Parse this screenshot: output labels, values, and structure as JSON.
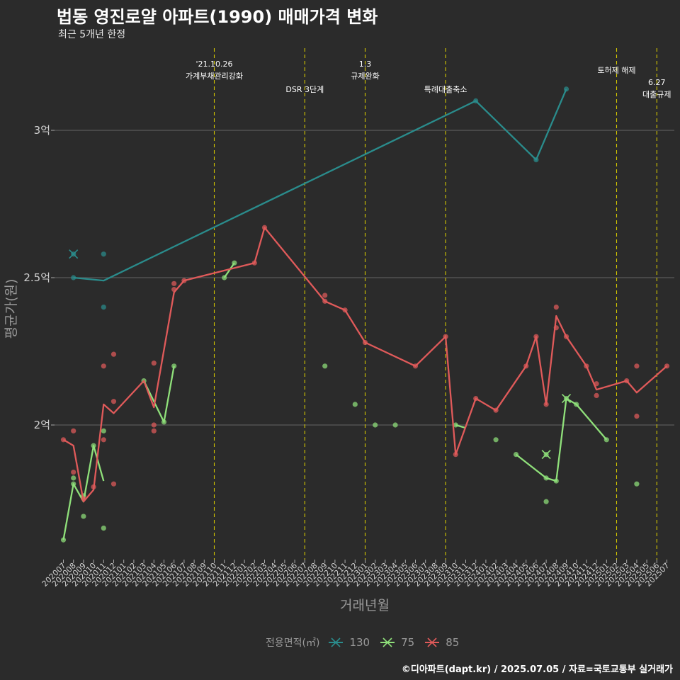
{
  "header": {
    "title": "법동 영진로얄 아파트(1990) 매매가격 변화",
    "subtitle": "최근 5개년 한정"
  },
  "caption": "©디아파트(dapt.kr) / 2025.07.05 / 자료=국토교통부 실거래가",
  "legend": {
    "title": "전용면적(㎡)",
    "items": [
      {
        "label": "130",
        "color": "#2a8c8c"
      },
      {
        "label": "75",
        "color": "#8fe07a"
      },
      {
        "label": "85",
        "color": "#e05a5a"
      }
    ]
  },
  "chart_data": {
    "type": "line",
    "xlabel": "거래년월",
    "ylabel": "평균가(원)",
    "ylim": [
      1.55,
      3.25
    ],
    "yticks": [
      {
        "value": 2.0,
        "label": "2억"
      },
      {
        "value": 2.5,
        "label": "2.5억"
      },
      {
        "value": 3.0,
        "label": "3억"
      }
    ],
    "grid": true,
    "legend_position": "bottom",
    "x_categories": [
      "202007",
      "202008",
      "202009",
      "202010",
      "202011",
      "202012",
      "202101",
      "202102",
      "202103",
      "202104",
      "202105",
      "202106",
      "202107",
      "202108",
      "202109",
      "202110",
      "202111",
      "202112",
      "202201",
      "202202",
      "202203",
      "202204",
      "202205",
      "202206",
      "202207",
      "202208",
      "202209",
      "202210",
      "202211",
      "202212",
      "202301",
      "202302",
      "202303",
      "202304",
      "202305",
      "202306",
      "202307",
      "202308",
      "202309",
      "202310",
      "202311",
      "202312",
      "202401",
      "202402",
      "202403",
      "202404",
      "202405",
      "202406",
      "202407",
      "202408",
      "202409",
      "202410",
      "202411",
      "202412",
      "202501",
      "202502",
      "202503",
      "202504",
      "202505",
      "202506",
      "202507"
    ],
    "annotations": [
      {
        "x": "202110",
        "lines": [
          "'21.10.26",
          "가계부채관리강화"
        ]
      },
      {
        "x": "202207",
        "lines": [
          "DSR 3단계"
        ]
      },
      {
        "x": "202301",
        "lines": [
          "1.3",
          "규제완화"
        ]
      },
      {
        "x": "202309",
        "lines": [
          "특례대출축소"
        ]
      },
      {
        "x": "202502",
        "lines": [
          "토허제 해제"
        ]
      },
      {
        "x": "202506",
        "lines": [
          "6.27",
          "대출규제"
        ]
      }
    ],
    "series": [
      {
        "name": "130",
        "color": "#2a8c8c",
        "line": [
          [
            "202008",
            2.5
          ],
          [
            "202011",
            2.49
          ],
          [
            "202312",
            3.1
          ],
          [
            "202406",
            2.9
          ],
          [
            "202409",
            3.14
          ]
        ],
        "points": [
          [
            "202008",
            2.5
          ],
          [
            "202008",
            2.58
          ],
          [
            "202011",
            2.58
          ],
          [
            "202011",
            2.4
          ],
          [
            "202312",
            3.1
          ],
          [
            "202406",
            2.9
          ],
          [
            "202409",
            3.14
          ]
        ],
        "crosses": [
          [
            "202008",
            2.58
          ]
        ]
      },
      {
        "name": "75",
        "color": "#8fe07a",
        "line": [
          [
            "202007",
            1.61
          ],
          [
            "202008",
            1.8
          ],
          [
            "202009",
            1.74
          ],
          [
            "202010",
            1.93
          ],
          [
            "202011",
            1.81
          ]
        ],
        "line2": [
          [
            "202103",
            2.15
          ],
          [
            "202105",
            2.01
          ],
          [
            "202106",
            2.2
          ]
        ],
        "line3": [
          [
            "202111",
            2.5
          ],
          [
            "202112",
            2.55
          ]
        ],
        "line4": [
          [
            "202310",
            2.0
          ],
          [
            "202311",
            1.99
          ]
        ],
        "line5": [
          [
            "202404",
            1.9
          ],
          [
            "202407",
            1.82
          ],
          [
            "202408",
            1.81
          ],
          [
            "202409",
            2.09
          ],
          [
            "202410",
            2.07
          ],
          [
            "202501",
            1.95
          ]
        ],
        "points": [
          [
            "202007",
            1.61
          ],
          [
            "202008",
            1.8
          ],
          [
            "202008",
            1.82
          ],
          [
            "202009",
            1.69
          ],
          [
            "202009",
            1.76
          ],
          [
            "202010",
            1.93
          ],
          [
            "202011",
            1.98
          ],
          [
            "202011",
            1.65
          ],
          [
            "202103",
            2.15
          ],
          [
            "202105",
            2.01
          ],
          [
            "202106",
            2.2
          ],
          [
            "202111",
            2.5
          ],
          [
            "202112",
            2.55
          ],
          [
            "202209",
            2.2
          ],
          [
            "202212",
            2.07
          ],
          [
            "202302",
            2.0
          ],
          [
            "202304",
            2.0
          ],
          [
            "202310",
            2.0
          ],
          [
            "202402",
            1.95
          ],
          [
            "202404",
            1.9
          ],
          [
            "202407",
            1.9
          ],
          [
            "202407",
            1.82
          ],
          [
            "202407",
            1.74
          ],
          [
            "202408",
            1.81
          ],
          [
            "202409",
            2.09
          ],
          [
            "202410",
            2.07
          ],
          [
            "202501",
            1.95
          ],
          [
            "202504",
            1.8
          ]
        ],
        "crosses": [
          [
            "202407",
            1.9
          ],
          [
            "202409",
            2.09
          ]
        ]
      },
      {
        "name": "85",
        "color": "#e05a5a",
        "line": [
          [
            "202007",
            1.95
          ],
          [
            "202008",
            1.93
          ],
          [
            "202009",
            1.74
          ],
          [
            "202010",
            1.78
          ],
          [
            "202011",
            2.07
          ],
          [
            "202012",
            2.04
          ],
          [
            "202103",
            2.15
          ],
          [
            "202104",
            2.06
          ],
          [
            "202106",
            2.45
          ],
          [
            "202107",
            2.49
          ],
          [
            "202202",
            2.55
          ],
          [
            "202203",
            2.67
          ],
          [
            "202209",
            2.42
          ],
          [
            "202211",
            2.39
          ],
          [
            "202301",
            2.28
          ],
          [
            "202306",
            2.2
          ],
          [
            "202309",
            2.3
          ],
          [
            "202310",
            1.9
          ],
          [
            "202312",
            2.09
          ],
          [
            "202402",
            2.05
          ],
          [
            "202405",
            2.2
          ],
          [
            "202406",
            2.3
          ],
          [
            "202407",
            2.07
          ],
          [
            "202408",
            2.37
          ],
          [
            "202409",
            2.3
          ],
          [
            "202411",
            2.2
          ],
          [
            "202412",
            2.12
          ],
          [
            "202503",
            2.15
          ],
          [
            "202504",
            2.11
          ],
          [
            "202507",
            2.2
          ]
        ],
        "points": [
          [
            "202007",
            1.95
          ],
          [
            "202008",
            1.98
          ],
          [
            "202008",
            1.84
          ],
          [
            "202009",
            1.75
          ],
          [
            "202010",
            1.79
          ],
          [
            "202011",
            2.2
          ],
          [
            "202011",
            1.95
          ],
          [
            "202012",
            2.08
          ],
          [
            "202012",
            2.24
          ],
          [
            "202012",
            1.8
          ],
          [
            "202104",
            2.21
          ],
          [
            "202104",
            2.0
          ],
          [
            "202104",
            1.98
          ],
          [
            "202106",
            2.48
          ],
          [
            "202106",
            2.46
          ],
          [
            "202107",
            2.49
          ],
          [
            "202202",
            2.55
          ],
          [
            "202203",
            2.67
          ],
          [
            "202209",
            2.44
          ],
          [
            "202209",
            2.42
          ],
          [
            "202211",
            2.39
          ],
          [
            "202301",
            2.28
          ],
          [
            "202306",
            2.2
          ],
          [
            "202309",
            2.3
          ],
          [
            "202310",
            1.9
          ],
          [
            "202312",
            2.09
          ],
          [
            "202402",
            2.05
          ],
          [
            "202405",
            2.2
          ],
          [
            "202406",
            2.3
          ],
          [
            "202407",
            2.07
          ],
          [
            "202408",
            2.4
          ],
          [
            "202408",
            2.33
          ],
          [
            "202409",
            2.3
          ],
          [
            "202411",
            2.2
          ],
          [
            "202412",
            2.14
          ],
          [
            "202412",
            2.1
          ],
          [
            "202503",
            2.15
          ],
          [
            "202504",
            2.2
          ],
          [
            "202504",
            2.03
          ],
          [
            "202507",
            2.2
          ]
        ],
        "crosses": []
      }
    ]
  }
}
